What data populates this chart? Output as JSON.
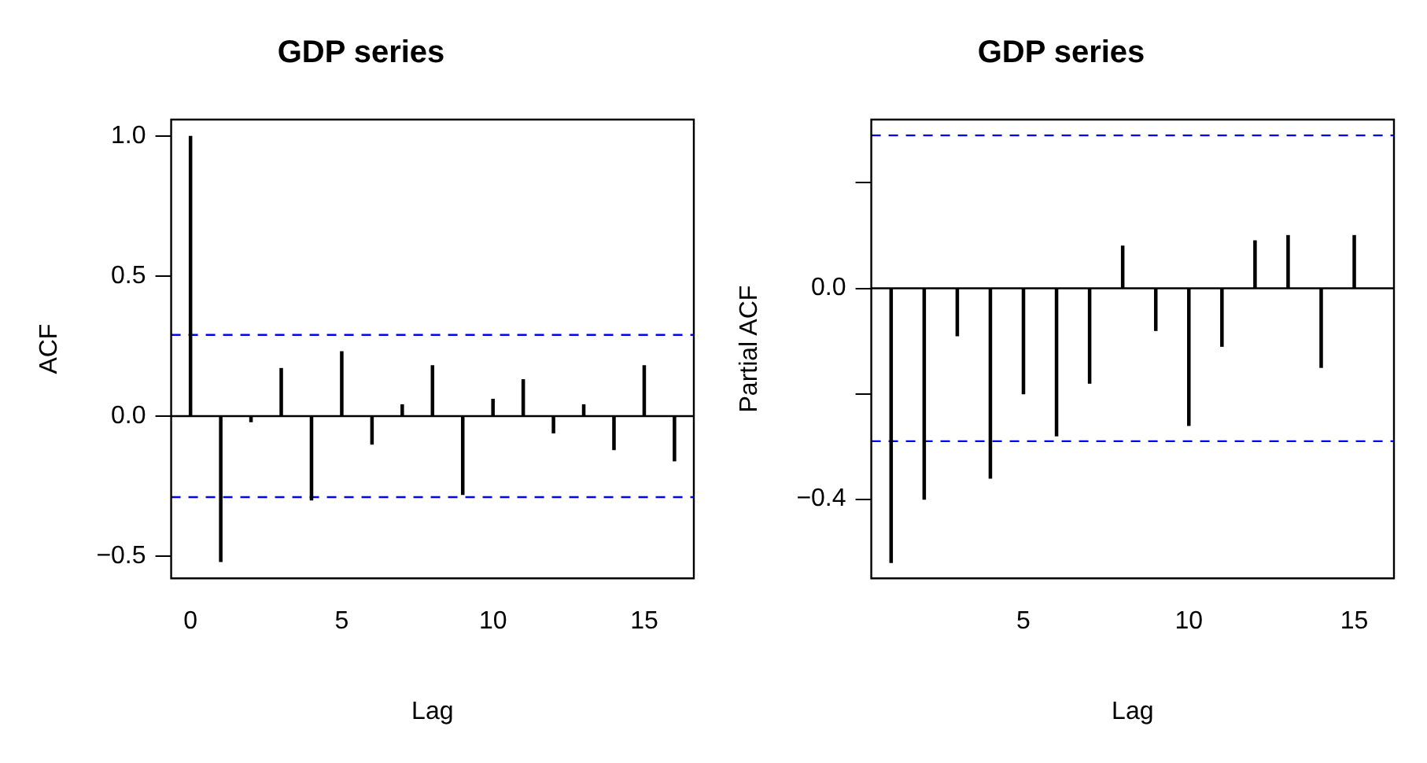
{
  "chart_data": [
    {
      "type": "bar",
      "title": "GDP series",
      "xlabel": "Lag",
      "ylabel": "ACF",
      "x": [
        0,
        1,
        2,
        3,
        4,
        5,
        6,
        7,
        8,
        9,
        10,
        11,
        12,
        13,
        14,
        15,
        16
      ],
      "series": [
        {
          "color": "#000000",
          "values": [
            1.0,
            -0.52,
            -0.02,
            0.17,
            -0.3,
            0.23,
            -0.1,
            0.04,
            0.18,
            -0.28,
            0.06,
            0.13,
            -0.06,
            0.04,
            -0.12,
            0.18,
            -0.16
          ]
        }
      ],
      "xlim": [
        -0.64,
        16.64
      ],
      "xticks": [
        0,
        5,
        10,
        15
      ],
      "ylim": [
        -0.58,
        1.06
      ],
      "yticks": [
        {
          "value": -0.5,
          "label": "−0.5"
        },
        {
          "value": 0,
          "label": "0.0"
        },
        {
          "value": 0.5,
          "label": "0.5"
        },
        {
          "value": 1,
          "label": "1.0"
        }
      ],
      "grid": false,
      "legend": false,
      "ref_lines": [
        {
          "axis": "y",
          "value": 0,
          "color": "#000000",
          "line_style": "solid"
        },
        {
          "axis": "y",
          "value": 0.29,
          "color": "#0000ff",
          "line_style": "dashed"
        },
        {
          "axis": "y",
          "value": -0.29,
          "color": "#0000ff",
          "line_style": "dashed"
        }
      ]
    },
    {
      "type": "bar",
      "title": "GDP series",
      "xlabel": "Lag",
      "ylabel": "Partial ACF",
      "x": [
        1,
        2,
        3,
        4,
        5,
        6,
        7,
        8,
        9,
        10,
        11,
        12,
        13,
        14,
        15
      ],
      "series": [
        {
          "color": "#000000",
          "values": [
            -0.52,
            -0.4,
            -0.09,
            -0.36,
            -0.2,
            -0.28,
            -0.18,
            0.08,
            -0.08,
            -0.26,
            -0.11,
            0.09,
            0.1,
            -0.15,
            0.1
          ]
        }
      ],
      "xlim": [
        0.4,
        16.2
      ],
      "xticks": [
        5,
        10,
        15
      ],
      "ylim": [
        -0.55,
        0.32
      ],
      "yticks": [
        {
          "value": -0.4,
          "label": "−0.4"
        },
        {
          "value": -0.2,
          "label": null
        },
        {
          "value": 0.0,
          "label": "0.0"
        },
        {
          "value": 0.2,
          "label": null
        }
      ],
      "grid": false,
      "legend": false,
      "ref_lines": [
        {
          "axis": "y",
          "value": 0,
          "color": "#000000",
          "line_style": "solid"
        },
        {
          "axis": "y",
          "value": 0.29,
          "color": "#0000ff",
          "line_style": "dashed"
        },
        {
          "axis": "y",
          "value": -0.29,
          "color": "#0000ff",
          "line_style": "dashed"
        }
      ]
    }
  ]
}
